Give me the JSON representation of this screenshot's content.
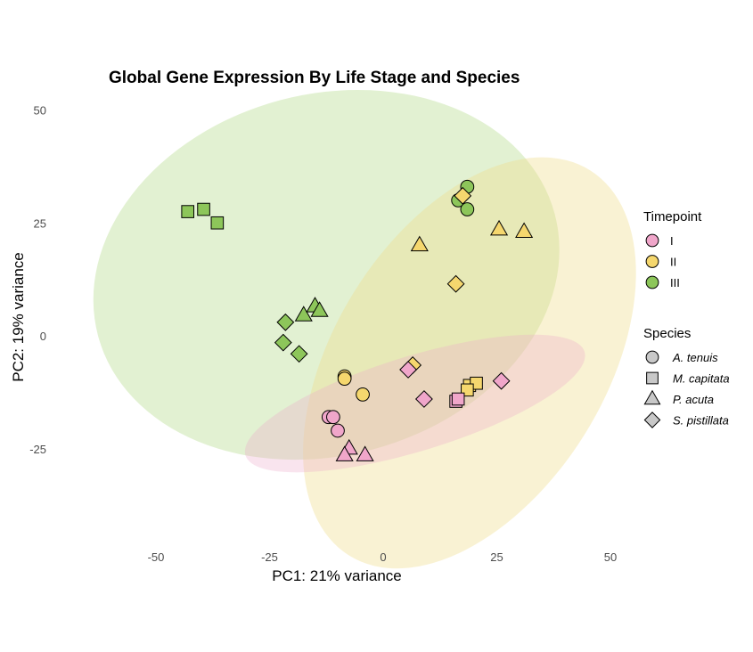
{
  "chart_data": {
    "type": "scatter",
    "title": "Global Gene Expression By Life Stage and Species",
    "xlabel": "PC1: 21% variance",
    "ylabel": "PC2: 19% variance",
    "xlim": [
      -60,
      50
    ],
    "ylim": [
      -42,
      52
    ],
    "xticks": [
      "-50",
      "-25",
      "0",
      "25",
      "50"
    ],
    "yticks": [
      "50",
      "25",
      "0",
      "-25"
    ],
    "grid": false,
    "legend_position": "right",
    "legends": [
      {
        "title": "Timepoint",
        "entries": [
          {
            "label": "I",
            "color": "#F0A6CA"
          },
          {
            "label": "II",
            "color": "#F5D76E"
          },
          {
            "label": "III",
            "color": "#8DC65A"
          }
        ]
      },
      {
        "title": "Species",
        "entries": [
          {
            "label": "A. tenuis",
            "shape": "circle"
          },
          {
            "label": "M. capitata",
            "shape": "square"
          },
          {
            "label": "P. acuta",
            "shape": "triangle"
          },
          {
            "label": "S. pistillata",
            "shape": "diamond"
          }
        ]
      }
    ],
    "ellipses": [
      {
        "group": "III",
        "color": "#B9DE93",
        "opacity": 0.42,
        "cx": -12.5,
        "cy": 13.5,
        "rx": 52,
        "ry": 40,
        "angle": 15
      },
      {
        "group": "II",
        "color": "#F0DE8C",
        "opacity": 0.38,
        "cx": 19,
        "cy": -6,
        "rx": 50,
        "ry": 30,
        "angle": 58
      },
      {
        "group": "I",
        "color": "#EBAACB",
        "opacity": 0.32,
        "cx": 7,
        "cy": -15,
        "rx": 39,
        "ry": 10.5,
        "angle": 17
      }
    ],
    "points": [
      {
        "x": -43,
        "y": 27.5,
        "timepoint": "III",
        "species": "M. capitata"
      },
      {
        "x": -39.5,
        "y": 28,
        "timepoint": "III",
        "species": "M. capitata"
      },
      {
        "x": -36.5,
        "y": 25,
        "timepoint": "III",
        "species": "M. capitata"
      },
      {
        "x": -21.5,
        "y": 3,
        "timepoint": "III",
        "species": "S. pistillata"
      },
      {
        "x": -22,
        "y": -1.5,
        "timepoint": "III",
        "species": "S. pistillata"
      },
      {
        "x": -18.5,
        "y": -4,
        "timepoint": "III",
        "species": "S. pistillata"
      },
      {
        "x": -17.5,
        "y": 4.5,
        "timepoint": "III",
        "species": "P. acuta"
      },
      {
        "x": -15,
        "y": 6.5,
        "timepoint": "III",
        "species": "P. acuta"
      },
      {
        "x": -14,
        "y": 5.5,
        "timepoint": "III",
        "species": "P. acuta"
      },
      {
        "x": 18.5,
        "y": 33,
        "timepoint": "III",
        "species": "A. tenuis"
      },
      {
        "x": 16.5,
        "y": 30,
        "timepoint": "III",
        "species": "A. tenuis"
      },
      {
        "x": 18.5,
        "y": 28,
        "timepoint": "III",
        "species": "A. tenuis"
      },
      {
        "x": 17.5,
        "y": 31,
        "timepoint": "II",
        "species": "S. pistillata"
      },
      {
        "x": 8,
        "y": 20,
        "timepoint": "II",
        "species": "P. acuta"
      },
      {
        "x": 25.5,
        "y": 23.5,
        "timepoint": "II",
        "species": "P. acuta"
      },
      {
        "x": 31,
        "y": 23,
        "timepoint": "II",
        "species": "P. acuta"
      },
      {
        "x": 16,
        "y": 11.5,
        "timepoint": "II",
        "species": "S. pistillata"
      },
      {
        "x": -8.5,
        "y": -9,
        "timepoint": "II",
        "species": "A. tenuis"
      },
      {
        "x": -8.5,
        "y": -9.5,
        "timepoint": "II",
        "species": "A. tenuis"
      },
      {
        "x": -4.5,
        "y": -13,
        "timepoint": "II",
        "species": "A. tenuis"
      },
      {
        "x": 6.5,
        "y": -6.5,
        "timepoint": "II",
        "species": "S. pistillata"
      },
      {
        "x": 19,
        "y": -11,
        "timepoint": "II",
        "species": "M. capitata"
      },
      {
        "x": 20.5,
        "y": -10.5,
        "timepoint": "II",
        "species": "M. capitata"
      },
      {
        "x": 18.5,
        "y": -12,
        "timepoint": "II",
        "species": "M. capitata"
      },
      {
        "x": 5.5,
        "y": -7.5,
        "timepoint": "I",
        "species": "S. pistillata"
      },
      {
        "x": 9,
        "y": -14,
        "timepoint": "I",
        "species": "S. pistillata"
      },
      {
        "x": 26,
        "y": -10,
        "timepoint": "I",
        "species": "S. pistillata"
      },
      {
        "x": 16,
        "y": -14.5,
        "timepoint": "I",
        "species": "M. capitata"
      },
      {
        "x": 16.5,
        "y": -14,
        "timepoint": "I",
        "species": "M. capitata"
      },
      {
        "x": -12,
        "y": -18,
        "timepoint": "I",
        "species": "A. tenuis"
      },
      {
        "x": -11,
        "y": -18,
        "timepoint": "I",
        "species": "A. tenuis"
      },
      {
        "x": -10,
        "y": -21,
        "timepoint": "I",
        "species": "A. tenuis"
      },
      {
        "x": -7.5,
        "y": -25,
        "timepoint": "I",
        "species": "P. acuta"
      },
      {
        "x": -8.5,
        "y": -26.5,
        "timepoint": "I",
        "species": "P. acuta"
      },
      {
        "x": -4,
        "y": -26.5,
        "timepoint": "I",
        "species": "P. acuta"
      }
    ]
  }
}
